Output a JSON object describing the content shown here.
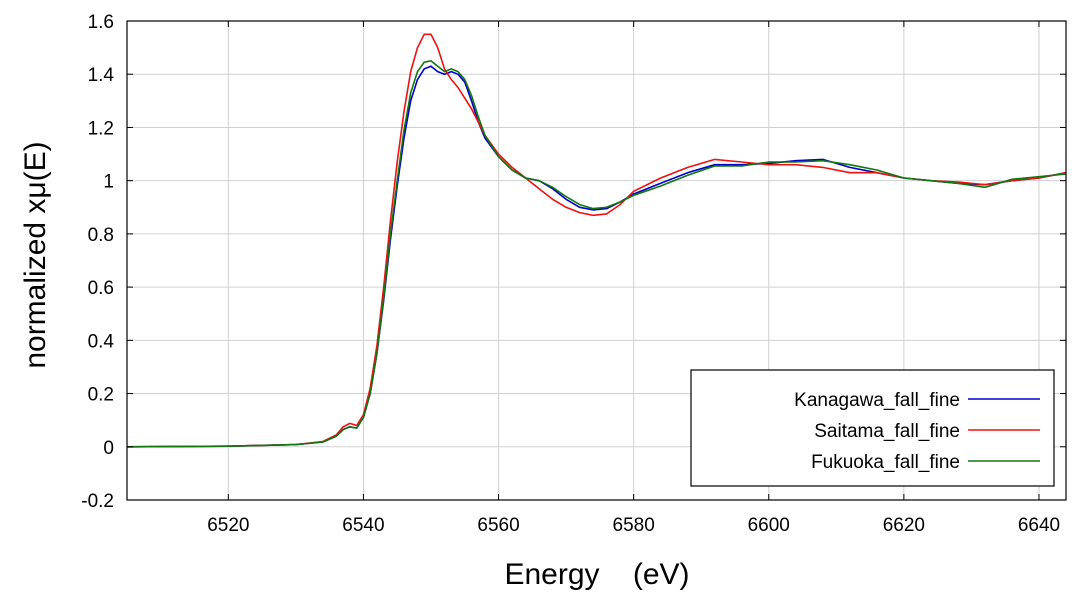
{
  "chart_data": {
    "type": "line",
    "title": "",
    "xlabel": "Energy    (eV)",
    "ylabel": "normalized xμ(E)",
    "xlim": [
      6505,
      6644
    ],
    "ylim": [
      -0.2,
      1.6
    ],
    "x_ticks": [
      6520,
      6540,
      6560,
      6580,
      6600,
      6620,
      6640
    ],
    "y_ticks": [
      -0.2,
      0,
      0.2,
      0.4,
      0.6,
      0.8,
      1,
      1.2,
      1.4,
      1.6
    ],
    "y_tick_labels": [
      "-0.2",
      "0",
      "0.2",
      "0.4",
      "0.6",
      "0.8",
      "1",
      "1.2",
      "1.4",
      "1.6"
    ],
    "grid": true,
    "legend_position": "bottom-right",
    "series": [
      {
        "name": "Kanagawa_fall_fine",
        "color": "#0000cc",
        "points": [
          [
            6505,
            0
          ],
          [
            6520,
            0.002
          ],
          [
            6530,
            0.008
          ],
          [
            6534,
            0.018
          ],
          [
            6536,
            0.04
          ],
          [
            6537,
            0.065
          ],
          [
            6538,
            0.075
          ],
          [
            6539,
            0.07
          ],
          [
            6540,
            0.11
          ],
          [
            6541,
            0.2
          ],
          [
            6542,
            0.35
          ],
          [
            6543,
            0.55
          ],
          [
            6544,
            0.78
          ],
          [
            6545,
            0.98
          ],
          [
            6546,
            1.16
          ],
          [
            6547,
            1.3
          ],
          [
            6548,
            1.38
          ],
          [
            6549,
            1.42
          ],
          [
            6550,
            1.43
          ],
          [
            6551,
            1.41
          ],
          [
            6552,
            1.4
          ],
          [
            6553,
            1.41
          ],
          [
            6554,
            1.4
          ],
          [
            6555,
            1.37
          ],
          [
            6556,
            1.3
          ],
          [
            6557,
            1.22
          ],
          [
            6558,
            1.16
          ],
          [
            6560,
            1.09
          ],
          [
            6562,
            1.04
          ],
          [
            6564,
            1.01
          ],
          [
            6566,
            1.0
          ],
          [
            6568,
            0.97
          ],
          [
            6570,
            0.93
          ],
          [
            6572,
            0.9
          ],
          [
            6574,
            0.89
          ],
          [
            6576,
            0.895
          ],
          [
            6578,
            0.92
          ],
          [
            6580,
            0.95
          ],
          [
            6584,
            0.99
          ],
          [
            6588,
            1.03
          ],
          [
            6592,
            1.06
          ],
          [
            6596,
            1.06
          ],
          [
            6600,
            1.065
          ],
          [
            6604,
            1.075
          ],
          [
            6608,
            1.08
          ],
          [
            6612,
            1.05
          ],
          [
            6616,
            1.03
          ],
          [
            6620,
            1.01
          ],
          [
            6624,
            1.0
          ],
          [
            6628,
            0.99
          ],
          [
            6632,
            0.985
          ],
          [
            6636,
            1.0
          ],
          [
            6640,
            1.01
          ],
          [
            6644,
            1.03
          ]
        ]
      },
      {
        "name": "Saitama_fall_fine",
        "color": "#ee1111",
        "points": [
          [
            6505,
            0
          ],
          [
            6520,
            0.002
          ],
          [
            6530,
            0.008
          ],
          [
            6534,
            0.02
          ],
          [
            6536,
            0.045
          ],
          [
            6537,
            0.075
          ],
          [
            6538,
            0.088
          ],
          [
            6539,
            0.08
          ],
          [
            6540,
            0.12
          ],
          [
            6541,
            0.22
          ],
          [
            6542,
            0.38
          ],
          [
            6543,
            0.6
          ],
          [
            6544,
            0.85
          ],
          [
            6545,
            1.07
          ],
          [
            6546,
            1.26
          ],
          [
            6547,
            1.41
          ],
          [
            6548,
            1.5
          ],
          [
            6549,
            1.55
          ],
          [
            6550,
            1.55
          ],
          [
            6551,
            1.5
          ],
          [
            6552,
            1.42
          ],
          [
            6553,
            1.38
          ],
          [
            6554,
            1.35
          ],
          [
            6555,
            1.31
          ],
          [
            6556,
            1.27
          ],
          [
            6557,
            1.22
          ],
          [
            6558,
            1.17
          ],
          [
            6560,
            1.1
          ],
          [
            6562,
            1.05
          ],
          [
            6564,
            1.01
          ],
          [
            6566,
            0.97
          ],
          [
            6568,
            0.93
          ],
          [
            6570,
            0.9
          ],
          [
            6572,
            0.88
          ],
          [
            6574,
            0.87
          ],
          [
            6576,
            0.875
          ],
          [
            6578,
            0.91
          ],
          [
            6580,
            0.96
          ],
          [
            6584,
            1.01
          ],
          [
            6588,
            1.05
          ],
          [
            6592,
            1.08
          ],
          [
            6596,
            1.07
          ],
          [
            6600,
            1.06
          ],
          [
            6604,
            1.06
          ],
          [
            6608,
            1.05
          ],
          [
            6612,
            1.03
          ],
          [
            6616,
            1.03
          ],
          [
            6620,
            1.01
          ],
          [
            6624,
            1.0
          ],
          [
            6628,
            0.995
          ],
          [
            6632,
            0.985
          ],
          [
            6636,
            1.0
          ],
          [
            6640,
            1.01
          ],
          [
            6644,
            1.03
          ]
        ]
      },
      {
        "name": "Fukuoka_fall_fine",
        "color": "#117711",
        "points": [
          [
            6505,
            0
          ],
          [
            6520,
            0.002
          ],
          [
            6530,
            0.008
          ],
          [
            6534,
            0.018
          ],
          [
            6536,
            0.04
          ],
          [
            6537,
            0.065
          ],
          [
            6538,
            0.075
          ],
          [
            6539,
            0.07
          ],
          [
            6540,
            0.11
          ],
          [
            6541,
            0.2
          ],
          [
            6542,
            0.35
          ],
          [
            6543,
            0.56
          ],
          [
            6544,
            0.8
          ],
          [
            6545,
            1.0
          ],
          [
            6546,
            1.19
          ],
          [
            6547,
            1.33
          ],
          [
            6548,
            1.41
          ],
          [
            6549,
            1.445
          ],
          [
            6550,
            1.45
          ],
          [
            6551,
            1.43
          ],
          [
            6552,
            1.41
          ],
          [
            6553,
            1.42
          ],
          [
            6554,
            1.41
          ],
          [
            6555,
            1.38
          ],
          [
            6556,
            1.32
          ],
          [
            6557,
            1.24
          ],
          [
            6558,
            1.17
          ],
          [
            6560,
            1.09
          ],
          [
            6562,
            1.04
          ],
          [
            6564,
            1.01
          ],
          [
            6566,
            1.0
          ],
          [
            6568,
            0.975
          ],
          [
            6570,
            0.94
          ],
          [
            6572,
            0.91
          ],
          [
            6574,
            0.895
          ],
          [
            6576,
            0.9
          ],
          [
            6578,
            0.92
          ],
          [
            6580,
            0.945
          ],
          [
            6584,
            0.98
          ],
          [
            6588,
            1.02
          ],
          [
            6592,
            1.055
          ],
          [
            6596,
            1.055
          ],
          [
            6600,
            1.07
          ],
          [
            6604,
            1.07
          ],
          [
            6608,
            1.075
          ],
          [
            6612,
            1.06
          ],
          [
            6616,
            1.04
          ],
          [
            6620,
            1.01
          ],
          [
            6624,
            1.0
          ],
          [
            6628,
            0.99
          ],
          [
            6632,
            0.975
          ],
          [
            6636,
            1.005
          ],
          [
            6640,
            1.015
          ],
          [
            6644,
            1.025
          ]
        ]
      }
    ]
  }
}
